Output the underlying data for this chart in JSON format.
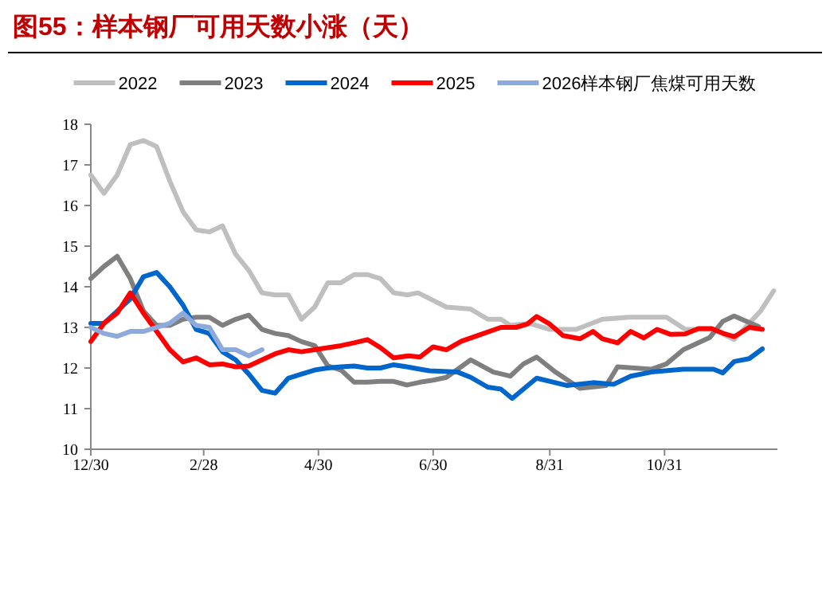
{
  "chart_data": {
    "type": "line",
    "title": "图55：样本钢厂可用天数小涨（天）",
    "xlim": [
      "2024-12-30",
      "2025-12-30"
    ],
    "xticks": [
      {
        "value": "2024-12-30",
        "label": "12/30"
      },
      {
        "value": "2025-02-28",
        "label": "2/28"
      },
      {
        "value": "2025-04-30",
        "label": "4/30"
      },
      {
        "value": "2025-06-30",
        "label": "6/30"
      },
      {
        "value": "2025-08-31",
        "label": "8/31"
      },
      {
        "value": "2025-10-31",
        "label": "10/31"
      }
    ],
    "ylim": [
      10,
      18
    ],
    "yticks": [
      10,
      11,
      12,
      13,
      14,
      15,
      16,
      17,
      18
    ],
    "grid": false,
    "legend": "top",
    "marker": "none",
    "line_style": "solid",
    "series": [
      {
        "name": "2022",
        "color": "#bfbfbf",
        "x": [
          "2024-12-30",
          "2025-01-06",
          "2025-01-13",
          "2025-01-20",
          "2025-01-27",
          "2025-02-03",
          "2025-02-10",
          "2025-02-17",
          "2025-02-24",
          "2025-03-03",
          "2025-03-10",
          "2025-03-17",
          "2025-03-24",
          "2025-03-31",
          "2025-04-07",
          "2025-04-14",
          "2025-04-21",
          "2025-04-28",
          "2025-05-05",
          "2025-05-12",
          "2025-05-19",
          "2025-05-26",
          "2025-06-02",
          "2025-06-09",
          "2025-06-16",
          "2025-06-22",
          "2025-07-07",
          "2025-07-20",
          "2025-07-29",
          "2025-08-05",
          "2025-08-10",
          "2025-08-20",
          "2025-08-31",
          "2025-09-14",
          "2025-09-28",
          "2025-10-12",
          "2025-11-01",
          "2025-11-11",
          "2025-11-26",
          "2025-12-07",
          "2025-12-21",
          "2025-12-28"
        ],
        "values": [
          16.75,
          16.3,
          16.75,
          17.5,
          17.6,
          17.45,
          16.6,
          15.85,
          15.4,
          15.35,
          15.5,
          14.8,
          14.4,
          13.85,
          13.8,
          13.8,
          13.2,
          13.5,
          14.1,
          14.1,
          14.3,
          14.3,
          14.2,
          13.85,
          13.8,
          13.85,
          13.5,
          13.45,
          13.2,
          13.2,
          13.05,
          13.1,
          12.95,
          12.95,
          13.2,
          13.25,
          13.25,
          12.95,
          12.95,
          12.7,
          13.4,
          13.9
        ]
      },
      {
        "name": "2023",
        "color": "#7f7f7f",
        "x": [
          "2024-12-30",
          "2025-01-06",
          "2025-01-13",
          "2025-01-20",
          "2025-01-27",
          "2025-02-03",
          "2025-02-10",
          "2025-02-17",
          "2025-02-24",
          "2025-03-03",
          "2025-03-10",
          "2025-03-17",
          "2025-03-24",
          "2025-03-31",
          "2025-04-07",
          "2025-04-14",
          "2025-04-21",
          "2025-04-28",
          "2025-05-05",
          "2025-05-12",
          "2025-05-19",
          "2025-05-26",
          "2025-06-02",
          "2025-06-09",
          "2025-06-16",
          "2025-06-23",
          "2025-06-30",
          "2025-07-07",
          "2025-07-20",
          "2025-08-01",
          "2025-08-10",
          "2025-08-17",
          "2025-08-24",
          "2025-09-03",
          "2025-09-16",
          "2025-09-30",
          "2025-10-06",
          "2025-10-24",
          "2025-11-01",
          "2025-11-10",
          "2025-11-24",
          "2025-12-01",
          "2025-12-07",
          "2025-12-20"
        ],
        "values": [
          14.2,
          14.5,
          14.75,
          14.2,
          13.4,
          13.05,
          13.05,
          13.2,
          13.25,
          13.25,
          13.05,
          13.2,
          13.3,
          12.95,
          12.85,
          12.8,
          12.65,
          12.55,
          12.05,
          11.95,
          11.65,
          11.65,
          11.67,
          11.67,
          11.58,
          11.65,
          11.7,
          11.77,
          12.2,
          11.9,
          11.8,
          12.1,
          12.27,
          11.9,
          11.5,
          11.57,
          12.03,
          11.97,
          12.1,
          12.45,
          12.75,
          13.15,
          13.28,
          13.02
        ]
      },
      {
        "name": "2024",
        "color": "#0066cc",
        "x": [
          "2024-12-30",
          "2025-01-06",
          "2025-01-13",
          "2025-01-20",
          "2025-01-27",
          "2025-02-03",
          "2025-02-10",
          "2025-02-17",
          "2025-02-24",
          "2025-03-03",
          "2025-03-10",
          "2025-03-17",
          "2025-03-24",
          "2025-03-31",
          "2025-04-07",
          "2025-04-14",
          "2025-04-21",
          "2025-04-28",
          "2025-05-05",
          "2025-05-12",
          "2025-05-19",
          "2025-05-26",
          "2025-06-02",
          "2025-06-09",
          "2025-06-16",
          "2025-06-23",
          "2025-06-28",
          "2025-07-13",
          "2025-07-20",
          "2025-07-29",
          "2025-08-05",
          "2025-08-11",
          "2025-08-24",
          "2025-09-09",
          "2025-09-23",
          "2025-10-04",
          "2025-10-13",
          "2025-10-24",
          "2025-11-10",
          "2025-11-26",
          "2025-12-01",
          "2025-12-07",
          "2025-12-15",
          "2025-12-22"
        ],
        "values": [
          13.1,
          13.1,
          13.4,
          13.7,
          14.25,
          14.35,
          14.0,
          13.55,
          12.95,
          12.85,
          12.4,
          12.2,
          11.85,
          11.45,
          11.38,
          11.75,
          11.85,
          11.95,
          12.0,
          12.03,
          12.05,
          12.0,
          12.0,
          12.08,
          12.03,
          11.97,
          11.93,
          11.9,
          11.77,
          11.53,
          11.48,
          11.25,
          11.75,
          11.57,
          11.64,
          11.6,
          11.8,
          11.9,
          11.97,
          11.97,
          11.88,
          12.16,
          12.23,
          12.47
        ]
      },
      {
        "name": "2025",
        "color": "#ff0000",
        "x": [
          "2024-12-30",
          "2025-01-06",
          "2025-01-13",
          "2025-01-20",
          "2025-01-27",
          "2025-02-03",
          "2025-02-10",
          "2025-02-17",
          "2025-02-24",
          "2025-03-03",
          "2025-03-10",
          "2025-03-17",
          "2025-03-24",
          "2025-03-31",
          "2025-04-07",
          "2025-04-14",
          "2025-04-21",
          "2025-04-28",
          "2025-05-05",
          "2025-05-12",
          "2025-05-19",
          "2025-05-26",
          "2025-06-02",
          "2025-06-09",
          "2025-06-17",
          "2025-06-23",
          "2025-06-30",
          "2025-07-07",
          "2025-07-15",
          "2025-07-25",
          "2025-08-05",
          "2025-08-13",
          "2025-08-19",
          "2025-08-24",
          "2025-08-31",
          "2025-09-07",
          "2025-09-16",
          "2025-09-23",
          "2025-09-28",
          "2025-10-06",
          "2025-10-13",
          "2025-10-20",
          "2025-10-27",
          "2025-11-03",
          "2025-11-11",
          "2025-11-18",
          "2025-11-25",
          "2025-12-02",
          "2025-12-07",
          "2025-12-15",
          "2025-12-22"
        ],
        "values": [
          12.65,
          13.1,
          13.35,
          13.85,
          13.35,
          12.9,
          12.45,
          12.15,
          12.25,
          12.08,
          12.1,
          12.03,
          12.05,
          12.2,
          12.35,
          12.45,
          12.4,
          12.45,
          12.5,
          12.55,
          12.62,
          12.7,
          12.5,
          12.25,
          12.3,
          12.27,
          12.52,
          12.45,
          12.66,
          12.82,
          13.0,
          13.0,
          13.08,
          13.27,
          13.08,
          12.8,
          12.72,
          12.9,
          12.72,
          12.62,
          12.9,
          12.74,
          12.95,
          12.83,
          12.84,
          12.97,
          12.97,
          12.84,
          12.77,
          13.0,
          12.95
        ]
      },
      {
        "name": "2026样本钢厂焦煤可用天数",
        "color": "#8eaadb",
        "x": [
          "2024-12-30",
          "2025-01-06",
          "2025-01-13",
          "2025-01-20",
          "2025-01-27",
          "2025-02-03",
          "2025-02-10",
          "2025-02-17",
          "2025-02-24",
          "2025-03-03",
          "2025-03-10",
          "2025-03-17",
          "2025-03-24",
          "2025-03-31"
        ],
        "values": [
          13.0,
          12.85,
          12.78,
          12.9,
          12.9,
          13.0,
          13.1,
          13.35,
          13.05,
          13.0,
          12.45,
          12.45,
          12.3,
          12.45
        ]
      }
    ]
  }
}
